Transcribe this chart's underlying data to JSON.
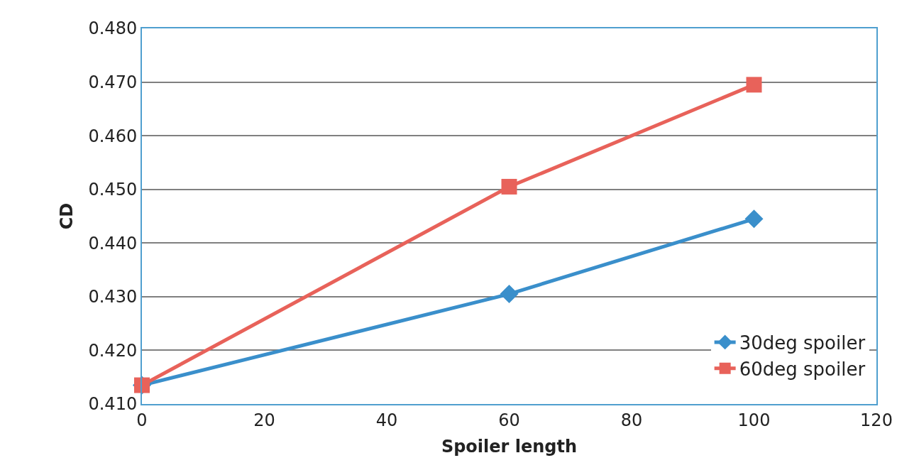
{
  "chart_data": {
    "type": "line",
    "xlabel": "Spoiler length",
    "ylabel": "CD",
    "x": [
      0,
      60,
      100
    ],
    "series": [
      {
        "name": "30deg spoiler",
        "color": "#3a8fcb",
        "marker": "diamond",
        "values": [
          0.4135,
          0.4305,
          0.4445
        ]
      },
      {
        "name": "60deg spoiler",
        "color": "#e8625a",
        "marker": "square",
        "values": [
          0.4135,
          0.4505,
          0.4695
        ]
      }
    ],
    "xlim": [
      0,
      120
    ],
    "xticks": [
      0,
      20,
      40,
      60,
      80,
      100,
      120
    ],
    "ylim": [
      0.41,
      0.48
    ],
    "yticks": [
      {
        "value": 0.41,
        "label": "0.410"
      },
      {
        "value": 0.42,
        "label": "0.420"
      },
      {
        "value": 0.43,
        "label": "0.430"
      },
      {
        "value": 0.44,
        "label": "0.440"
      },
      {
        "value": 0.45,
        "label": "0.450"
      },
      {
        "value": 0.46,
        "label": "0.460"
      },
      {
        "value": 0.47,
        "label": "0.470"
      },
      {
        "value": 0.48,
        "label": "0.480"
      }
    ],
    "grid": "y",
    "legend": "bottom right",
    "line_style": "solid"
  }
}
